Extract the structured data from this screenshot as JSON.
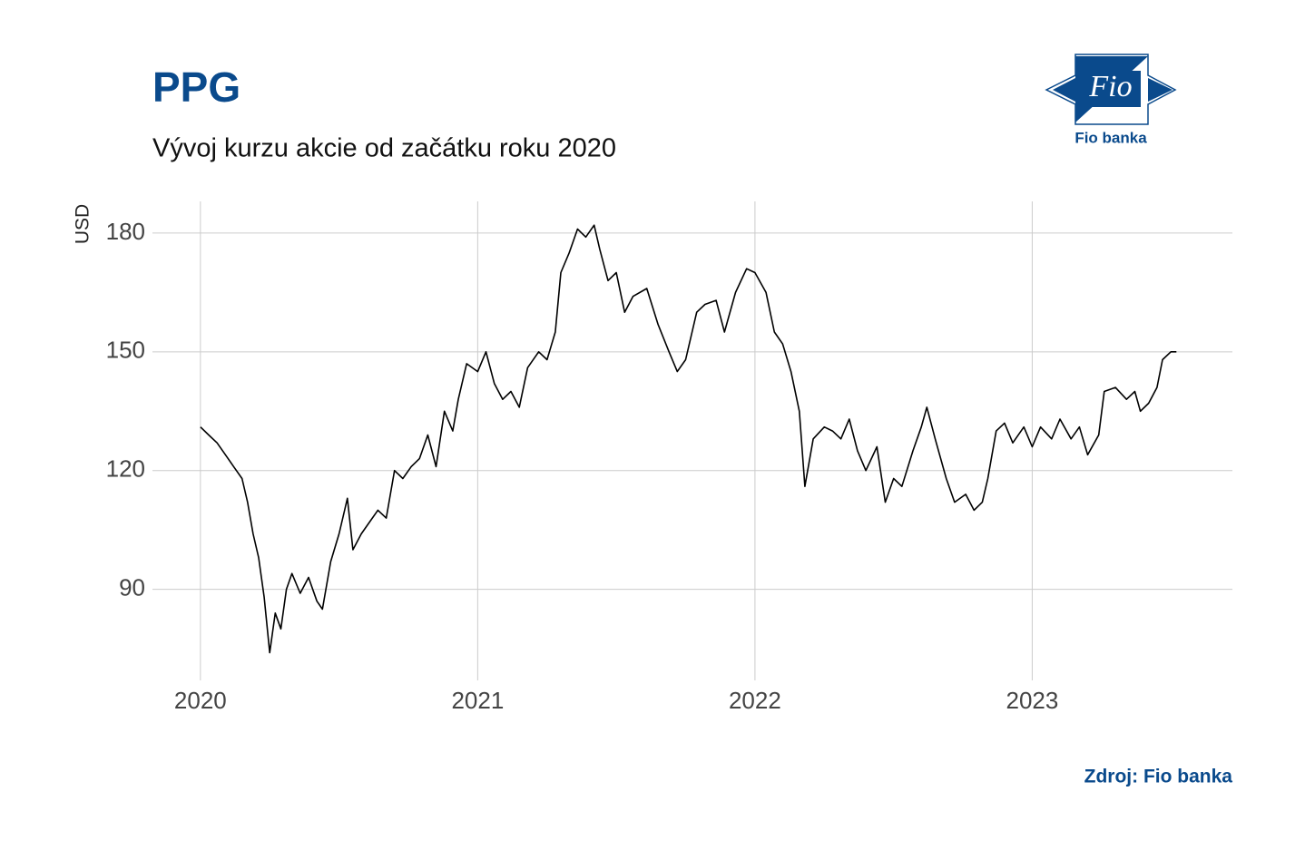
{
  "chart_data": {
    "type": "line",
    "title": "PPG",
    "subtitle": "Vývoj kurzu akcie od začátku roku 2020",
    "y_label": "USD",
    "source": "Zdroj: Fio banka",
    "logo": {
      "mark": "Fio",
      "name": "Fio banka"
    },
    "x": [
      2020.0,
      2020.03,
      2020.06,
      2020.09,
      2020.12,
      2020.15,
      2020.17,
      2020.19,
      2020.21,
      2020.23,
      2020.25,
      2020.27,
      2020.29,
      2020.31,
      2020.33,
      2020.36,
      2020.39,
      2020.42,
      2020.44,
      2020.47,
      2020.5,
      2020.53,
      2020.55,
      2020.58,
      2020.61,
      2020.64,
      2020.67,
      2020.7,
      2020.73,
      2020.76,
      2020.79,
      2020.82,
      2020.85,
      2020.88,
      2020.91,
      2020.93,
      2020.96,
      2021.0,
      2021.03,
      2021.06,
      2021.09,
      2021.12,
      2021.15,
      2021.18,
      2021.22,
      2021.25,
      2021.28,
      2021.3,
      2021.33,
      2021.36,
      2021.39,
      2021.42,
      2021.44,
      2021.47,
      2021.5,
      2021.53,
      2021.56,
      2021.61,
      2021.65,
      2021.69,
      2021.72,
      2021.75,
      2021.79,
      2021.82,
      2021.86,
      2021.89,
      2021.93,
      2021.97,
      2022.0,
      2022.04,
      2022.07,
      2022.1,
      2022.13,
      2022.16,
      2022.18,
      2022.21,
      2022.25,
      2022.28,
      2022.31,
      2022.34,
      2022.37,
      2022.4,
      2022.44,
      2022.47,
      2022.5,
      2022.53,
      2022.57,
      2022.6,
      2022.62,
      2022.65,
      2022.69,
      2022.72,
      2022.76,
      2022.79,
      2022.82,
      2022.84,
      2022.87,
      2022.9,
      2022.93,
      2022.97,
      2023.0,
      2023.03,
      2023.07,
      2023.1,
      2023.14,
      2023.17,
      2023.2,
      2023.24,
      2023.26,
      2023.3,
      2023.34,
      2023.37,
      2023.39,
      2023.42,
      2023.45,
      2023.47,
      2023.5,
      2023.52
    ],
    "series": [
      {
        "name": "PPG",
        "color": "#000000",
        "values": [
          131,
          129,
          127,
          124,
          121,
          118,
          112,
          104,
          98,
          88,
          74,
          84,
          80,
          90,
          94,
          89,
          93,
          87,
          85,
          97,
          104,
          113,
          100,
          104,
          107,
          110,
          108,
          120,
          118,
          121,
          123,
          129,
          121,
          135,
          130,
          138,
          147,
          145,
          150,
          142,
          138,
          140,
          136,
          146,
          150,
          148,
          155,
          170,
          175,
          181,
          179,
          182,
          176,
          168,
          170,
          160,
          164,
          166,
          157,
          150,
          145,
          148,
          160,
          162,
          163,
          155,
          165,
          171,
          170,
          165,
          155,
          152,
          145,
          135,
          116,
          128,
          131,
          130,
          128,
          133,
          125,
          120,
          126,
          112,
          118,
          116,
          125,
          131,
          136,
          128,
          118,
          112,
          114,
          110,
          112,
          118,
          130,
          132,
          127,
          131,
          126,
          131,
          128,
          133,
          128,
          131,
          124,
          129,
          140,
          141,
          138,
          140,
          135,
          137,
          141,
          148,
          150,
          150
        ]
      }
    ],
    "xlim": [
      2019.827,
      2023.722
    ],
    "xticks": [
      2020,
      2021,
      2022,
      2023
    ],
    "ylim": [
      67,
      188
    ],
    "yticks": [
      90,
      120,
      150,
      180
    ],
    "grid": true
  }
}
